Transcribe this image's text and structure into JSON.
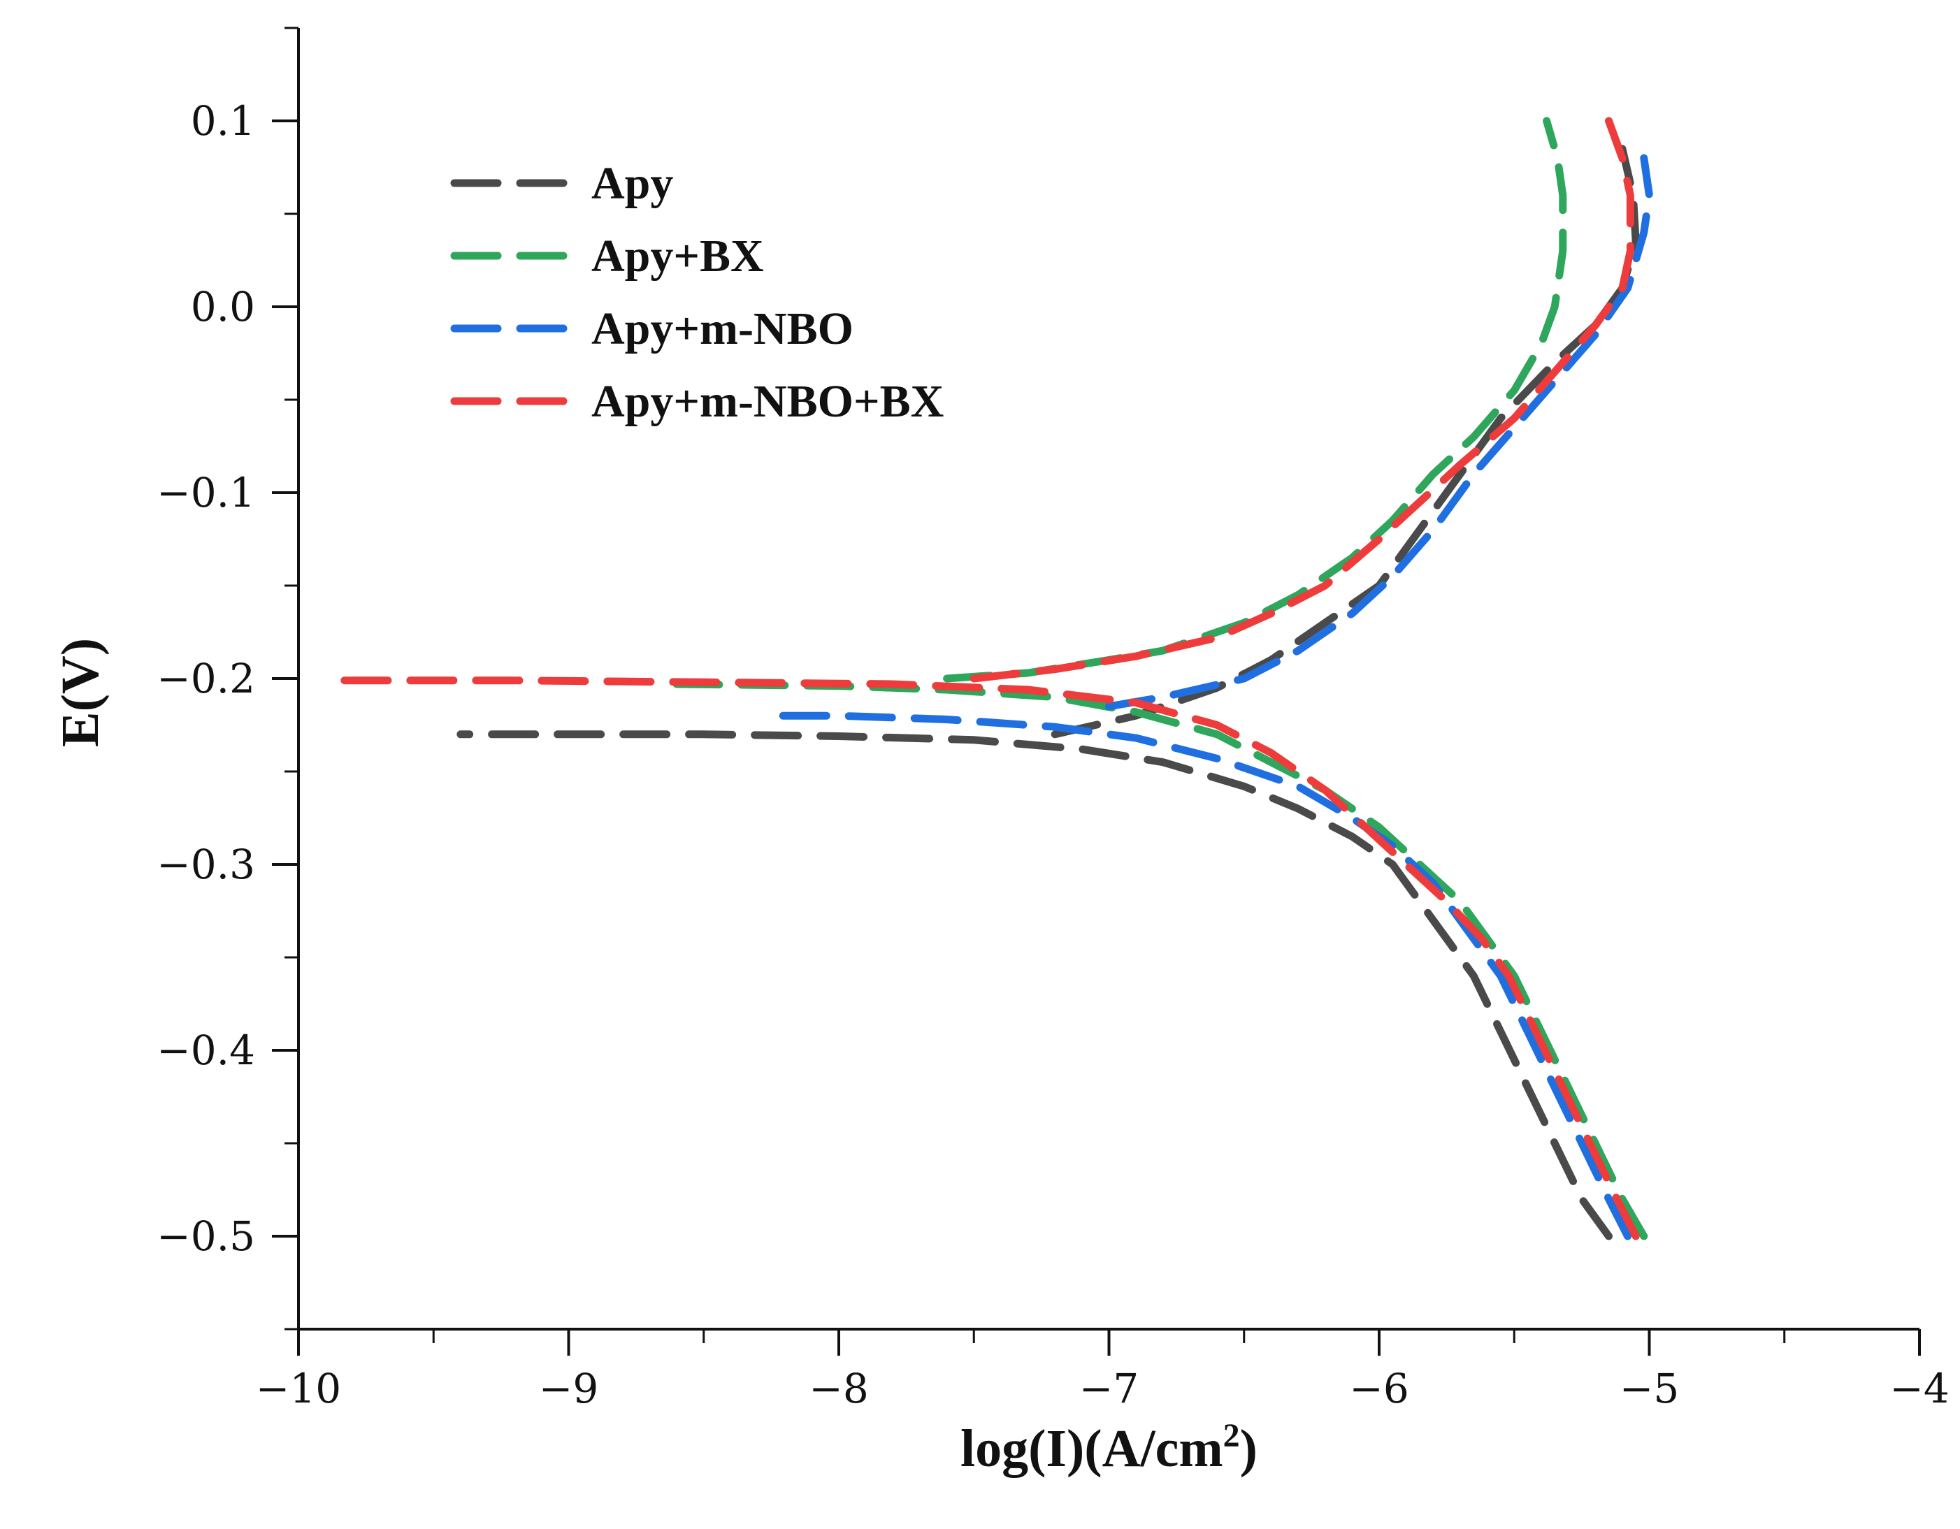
{
  "chart_data": {
    "type": "line",
    "title": "",
    "xlabel": "log(I)(A/cm",
    "xlabel_sup": "2",
    "xlabel_end": ")",
    "ylabel": "E(V)",
    "xlim": [
      -10,
      -4
    ],
    "ylim": [
      -0.55,
      0.15
    ],
    "xticks": [
      -10,
      -9,
      -8,
      -7,
      -6,
      -5,
      -4
    ],
    "xtick_labels": [
      "−10",
      "−9",
      "−8",
      "−7",
      "−6",
      "−5",
      "−4"
    ],
    "yticks": [
      -0.5,
      -0.4,
      -0.3,
      -0.2,
      -0.1,
      0.0,
      0.1
    ],
    "ytick_labels": [
      "−0.5",
      "−0.4",
      "−0.3",
      "−0.2",
      "−0.1",
      "0.0",
      "0.1"
    ],
    "grid": false,
    "legend_position": "top-left",
    "line_style": "dashed",
    "series": [
      {
        "name": "Apy",
        "color": "#4a4a4a",
        "cathodic": [
          [
            -5.15,
            -0.5
          ],
          [
            -5.25,
            -0.48
          ],
          [
            -5.35,
            -0.45
          ],
          [
            -5.45,
            -0.42
          ],
          [
            -5.55,
            -0.39
          ],
          [
            -5.65,
            -0.36
          ],
          [
            -5.75,
            -0.34
          ],
          [
            -5.85,
            -0.32
          ],
          [
            -5.95,
            -0.3
          ],
          [
            -6.1,
            -0.285
          ],
          [
            -6.3,
            -0.27
          ],
          [
            -6.5,
            -0.258
          ],
          [
            -6.8,
            -0.245
          ],
          [
            -7.1,
            -0.238
          ],
          [
            -7.5,
            -0.233
          ],
          [
            -8.0,
            -0.231
          ],
          [
            -8.5,
            -0.23
          ],
          [
            -9.0,
            -0.23
          ],
          [
            -9.4,
            -0.23
          ]
        ],
        "anodic": [
          [
            -7.2,
            -0.23
          ],
          [
            -6.9,
            -0.22
          ],
          [
            -6.6,
            -0.205
          ],
          [
            -6.4,
            -0.19
          ],
          [
            -6.2,
            -0.17
          ],
          [
            -6.0,
            -0.15
          ],
          [
            -5.85,
            -0.12
          ],
          [
            -5.7,
            -0.09
          ],
          [
            -5.55,
            -0.06
          ],
          [
            -5.35,
            -0.03
          ],
          [
            -5.2,
            -0.01
          ],
          [
            -5.1,
            0.01
          ],
          [
            -5.05,
            0.035
          ],
          [
            -5.06,
            0.06
          ],
          [
            -5.1,
            0.085
          ]
        ]
      },
      {
        "name": "Apy+BX",
        "color": "#2ea65b",
        "cathodic": [
          [
            -5.02,
            -0.5
          ],
          [
            -5.1,
            -0.48
          ],
          [
            -5.2,
            -0.45
          ],
          [
            -5.3,
            -0.42
          ],
          [
            -5.4,
            -0.39
          ],
          [
            -5.5,
            -0.36
          ],
          [
            -5.6,
            -0.34
          ],
          [
            -5.7,
            -0.32
          ],
          [
            -5.85,
            -0.3
          ],
          [
            -6.0,
            -0.28
          ],
          [
            -6.2,
            -0.26
          ],
          [
            -6.4,
            -0.245
          ],
          [
            -6.6,
            -0.23
          ],
          [
            -6.9,
            -0.218
          ],
          [
            -7.2,
            -0.21
          ],
          [
            -7.6,
            -0.206
          ],
          [
            -8.0,
            -0.204
          ],
          [
            -8.6,
            -0.203
          ]
        ],
        "anodic": [
          [
            -7.6,
            -0.2
          ],
          [
            -7.3,
            -0.197
          ],
          [
            -7.0,
            -0.19
          ],
          [
            -6.8,
            -0.185
          ],
          [
            -6.5,
            -0.17
          ],
          [
            -6.3,
            -0.155
          ],
          [
            -6.1,
            -0.135
          ],
          [
            -5.95,
            -0.115
          ],
          [
            -5.8,
            -0.09
          ],
          [
            -5.65,
            -0.07
          ],
          [
            -5.5,
            -0.045
          ],
          [
            -5.4,
            -0.02
          ],
          [
            -5.35,
            0.0
          ],
          [
            -5.32,
            0.03
          ],
          [
            -5.32,
            0.06
          ],
          [
            -5.34,
            0.08
          ],
          [
            -5.38,
            0.1
          ]
        ]
      },
      {
        "name": "Apy+m-NBO",
        "color": "#1f6fe0",
        "cathodic": [
          [
            -5.08,
            -0.5
          ],
          [
            -5.15,
            -0.48
          ],
          [
            -5.25,
            -0.45
          ],
          [
            -5.35,
            -0.42
          ],
          [
            -5.45,
            -0.39
          ],
          [
            -5.55,
            -0.36
          ],
          [
            -5.65,
            -0.34
          ],
          [
            -5.8,
            -0.31
          ],
          [
            -5.95,
            -0.29
          ],
          [
            -6.1,
            -0.275
          ],
          [
            -6.3,
            -0.258
          ],
          [
            -6.6,
            -0.243
          ],
          [
            -6.9,
            -0.232
          ],
          [
            -7.2,
            -0.226
          ],
          [
            -7.6,
            -0.222
          ],
          [
            -8.0,
            -0.22
          ],
          [
            -8.25,
            -0.22
          ]
        ],
        "anodic": [
          [
            -7.0,
            -0.215
          ],
          [
            -6.8,
            -0.21
          ],
          [
            -6.5,
            -0.2
          ],
          [
            -6.3,
            -0.185
          ],
          [
            -6.1,
            -0.165
          ],
          [
            -5.95,
            -0.145
          ],
          [
            -5.8,
            -0.12
          ],
          [
            -5.65,
            -0.09
          ],
          [
            -5.5,
            -0.065
          ],
          [
            -5.35,
            -0.04
          ],
          [
            -5.2,
            -0.015
          ],
          [
            -5.08,
            0.01
          ],
          [
            -5.02,
            0.04
          ],
          [
            -5.0,
            0.06
          ],
          [
            -5.02,
            0.08
          ]
        ]
      },
      {
        "name": "Apy+m-NBO+BX",
        "color": "#ee3b3b",
        "cathodic": [
          [
            -5.05,
            -0.5
          ],
          [
            -5.12,
            -0.48
          ],
          [
            -5.22,
            -0.45
          ],
          [
            -5.32,
            -0.42
          ],
          [
            -5.42,
            -0.39
          ],
          [
            -5.52,
            -0.36
          ],
          [
            -5.62,
            -0.34
          ],
          [
            -5.75,
            -0.32
          ],
          [
            -5.9,
            -0.3
          ],
          [
            -6.05,
            -0.28
          ],
          [
            -6.2,
            -0.26
          ],
          [
            -6.4,
            -0.24
          ],
          [
            -6.6,
            -0.225
          ],
          [
            -6.9,
            -0.213
          ],
          [
            -7.3,
            -0.206
          ],
          [
            -7.8,
            -0.203
          ],
          [
            -8.5,
            -0.202
          ],
          [
            -9.2,
            -0.201
          ],
          [
            -9.9,
            -0.201
          ]
        ],
        "anodic": [
          [
            -7.5,
            -0.2
          ],
          [
            -7.2,
            -0.195
          ],
          [
            -6.9,
            -0.188
          ],
          [
            -6.6,
            -0.178
          ],
          [
            -6.4,
            -0.165
          ],
          [
            -6.2,
            -0.15
          ],
          [
            -6.0,
            -0.125
          ],
          [
            -5.85,
            -0.105
          ],
          [
            -5.7,
            -0.085
          ],
          [
            -5.5,
            -0.06
          ],
          [
            -5.35,
            -0.035
          ],
          [
            -5.2,
            -0.01
          ],
          [
            -5.1,
            0.01
          ],
          [
            -5.07,
            0.03
          ],
          [
            -5.07,
            0.06
          ],
          [
            -5.1,
            0.08
          ],
          [
            -5.15,
            0.1
          ]
        ]
      }
    ]
  }
}
